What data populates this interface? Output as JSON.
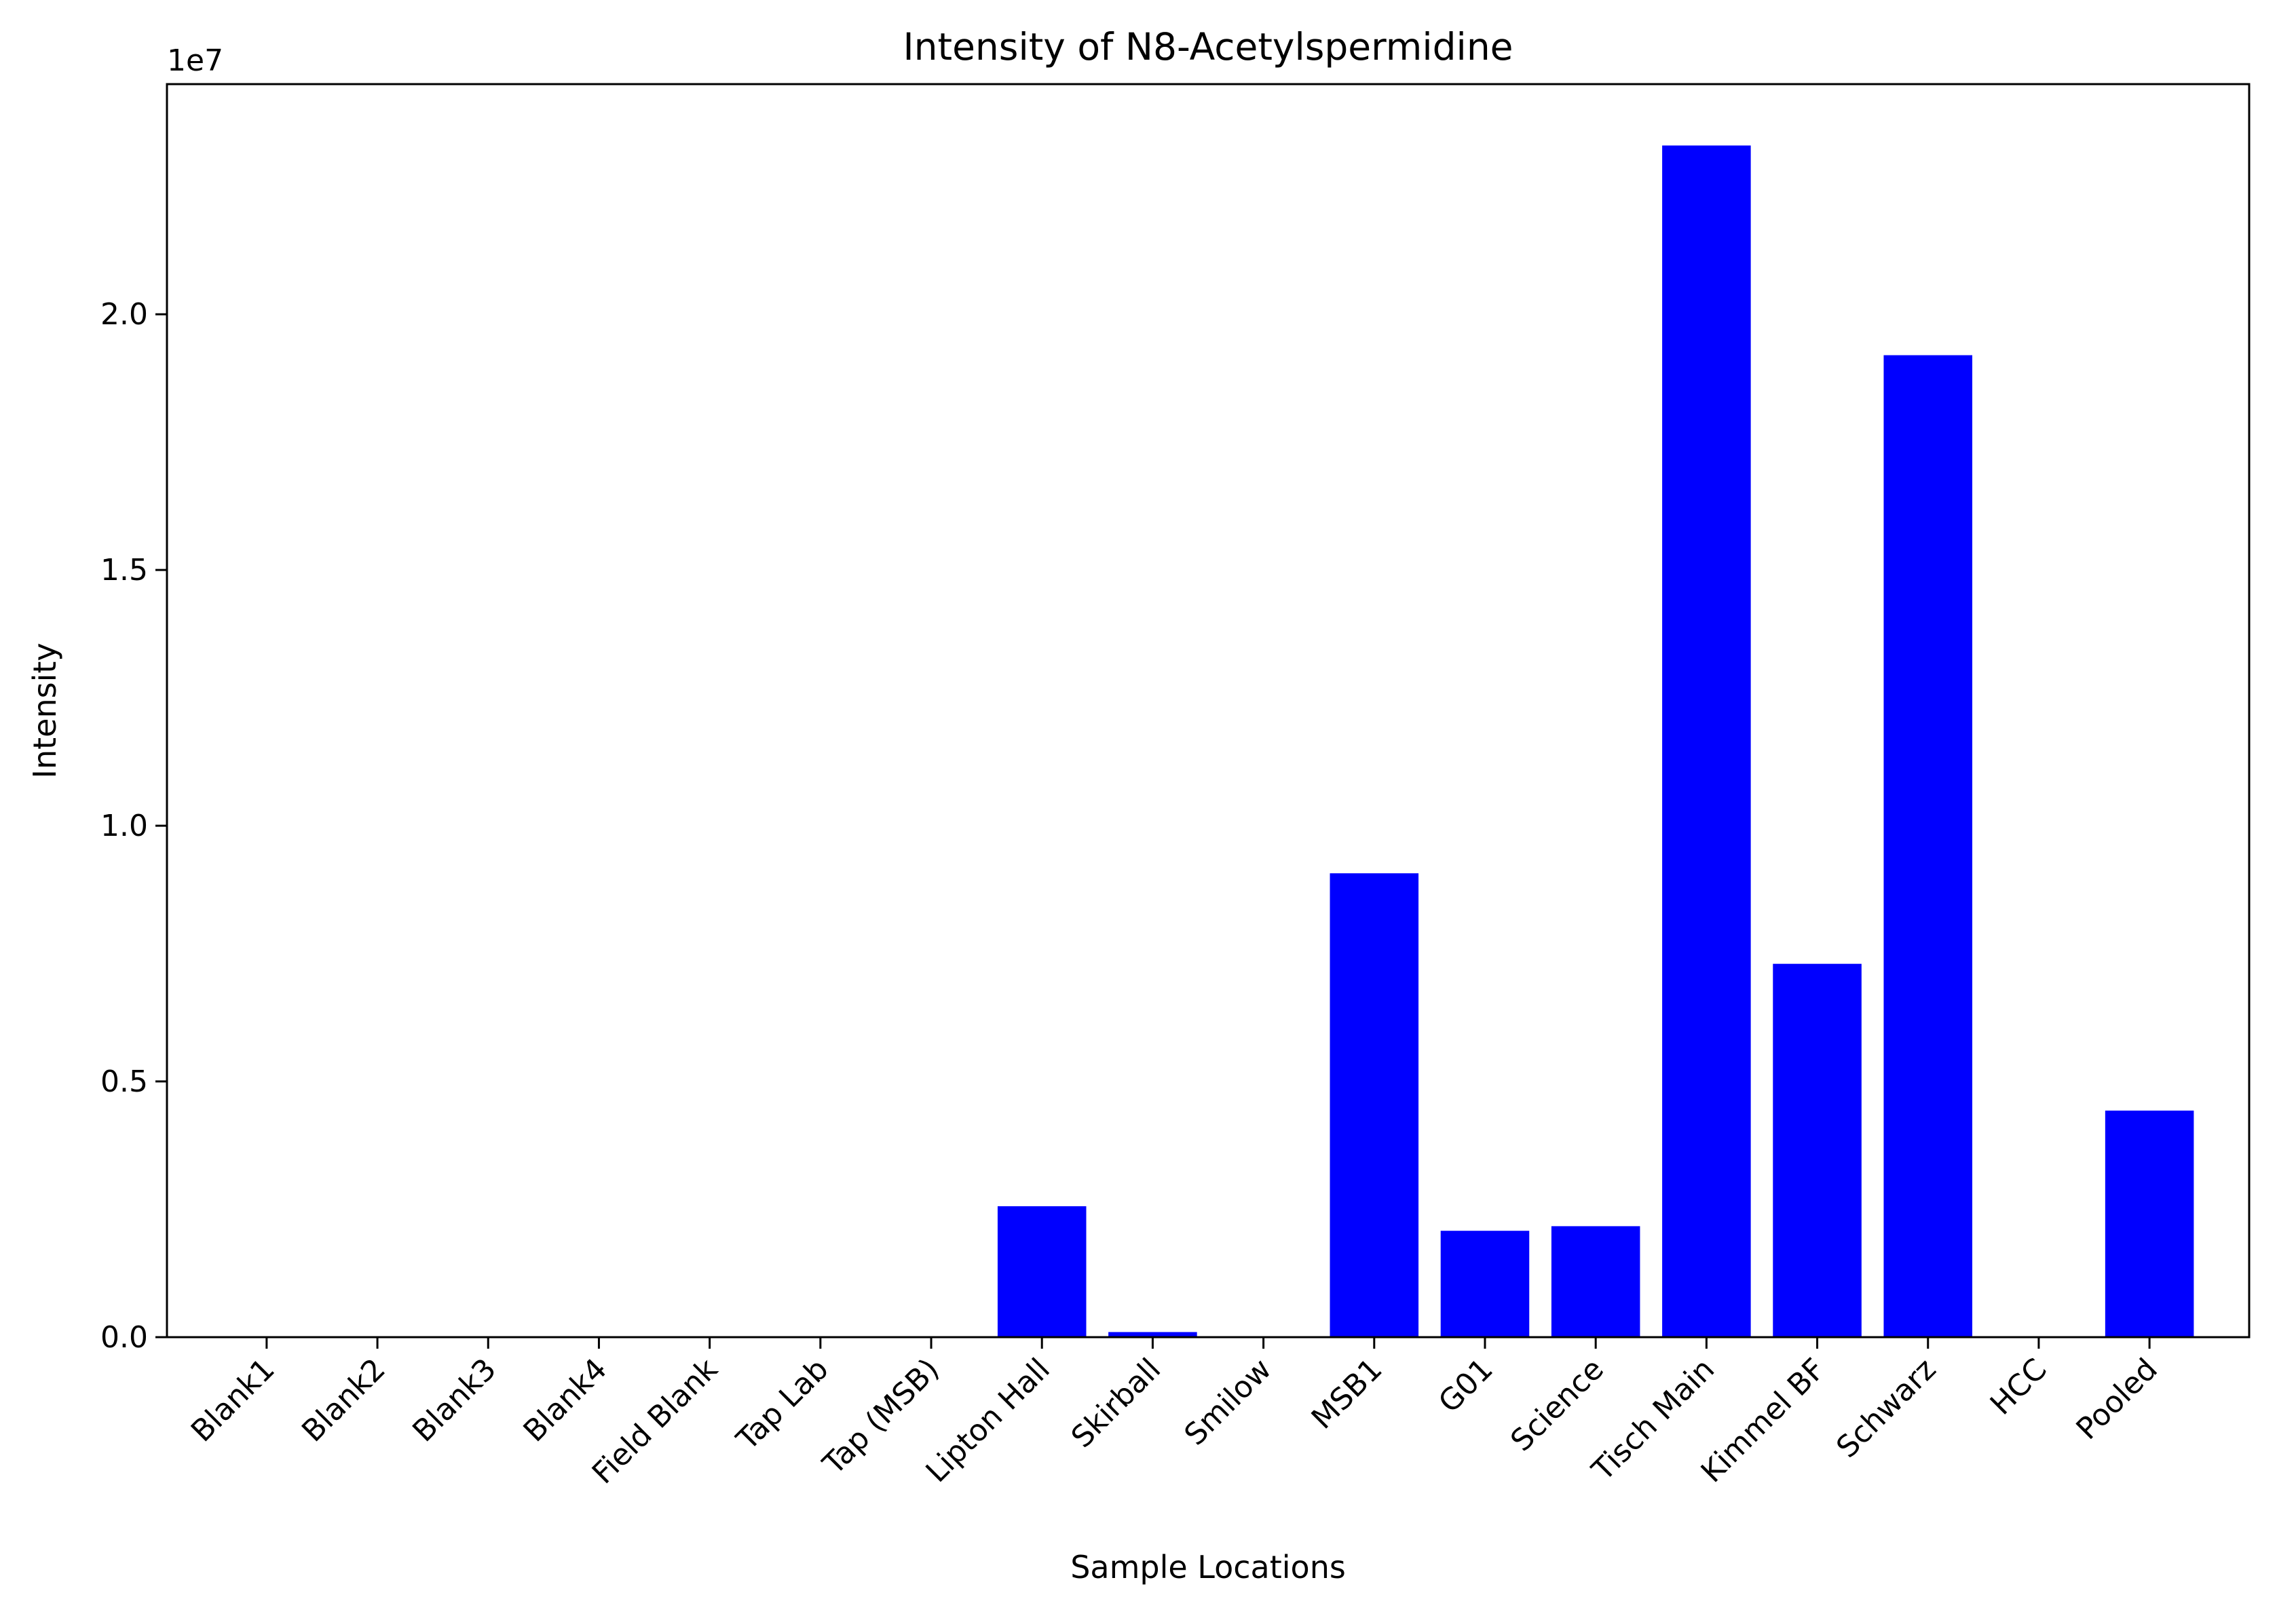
{
  "chart_data": {
    "type": "bar",
    "title": "Intensity of N8-Acetylspermidine",
    "xlabel": "Sample Locations",
    "ylabel": "Intensity",
    "y_offset_label": "1e7",
    "categories": [
      "Blank1",
      "Blank2",
      "Blank3",
      "Blank4",
      "Field Blank",
      "Tap Lab",
      "Tap (MSB)",
      "Lipton Hall",
      "Skirball",
      "Smilow",
      "MSB1",
      "G01",
      "Science",
      "Tisch Main",
      "Kimmel BF",
      "Schwarz",
      "HCC",
      "Pooled"
    ],
    "values": [
      0,
      0,
      0,
      0,
      0,
      0,
      0,
      25600000,
      1000000,
      0,
      90700000,
      20800000,
      21700000,
      233000000,
      73000000,
      192000000,
      0,
      44300000
    ],
    "ylim": [
      0,
      245000000
    ],
    "yticks": [
      0,
      50000000,
      100000000,
      150000000,
      200000000
    ],
    "ytick_labels": [
      "0.0",
      "0.5",
      "1.0",
      "1.5",
      "2.0"
    ],
    "bar_color": "#0000ff",
    "grid": false,
    "legend": "none"
  }
}
